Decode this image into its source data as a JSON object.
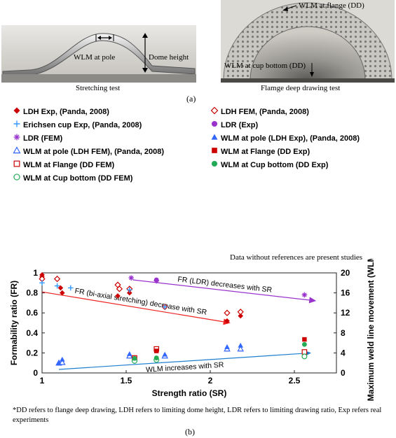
{
  "photos": {
    "left": {
      "caption": "Stretching test",
      "labels": {
        "wlm_pole": "WLM at pole",
        "dome_height": "Dome height"
      }
    },
    "right": {
      "caption": "Flamge deep drawing test",
      "labels": {
        "wlm_flange": "WLM at flange (DD)",
        "wlm_cup": "WLM at cup bottom (DD)"
      }
    },
    "panel_label": "(a)"
  },
  "legend": {
    "left": [
      {
        "marker": "diamond-filled",
        "color": "#cc0000",
        "label": "LDH Exp, (Panda, 2008)"
      },
      {
        "marker": "plus",
        "color": "#3399ff",
        "label": "Erichsen cup Exp, (Panda, 2008)"
      },
      {
        "marker": "star",
        "color": "#9933cc",
        "label": "LDR (FEM)"
      },
      {
        "marker": "triangle-open",
        "color": "#3366ff",
        "label": "WLM at pole (LDH FEM), (Panda, 2008)"
      },
      {
        "marker": "square-open",
        "color": "#cc0000",
        "label": "WLM at Flange (DD FEM)"
      },
      {
        "marker": "circle-open",
        "color": "#22aa55",
        "label": "WLM  at Cup bottom (DD FEM)"
      }
    ],
    "right": [
      {
        "marker": "diamond-open",
        "color": "#cc0000",
        "label": "LDH FEM, (Panda, 2008)"
      },
      {
        "marker": "circle-filled",
        "color": "#9933cc",
        "label": "LDR (Exp)"
      },
      {
        "marker": "triangle-filled",
        "color": "#3366ff",
        "label": "WLM at pole (LDH Exp), (Panda, 2008)"
      },
      {
        "marker": "square-filled",
        "color": "#cc0000",
        "label": "WLM at Flange (DD Exp)"
      },
      {
        "marker": "circle-filled",
        "color": "#22aa55",
        "label": "WLM  at Cup bottom (DD Exp)"
      }
    ],
    "note": "Data without references are present studies"
  },
  "chart_data": {
    "type": "scatter",
    "xlabel": "Strength ratio (SR)",
    "ylabel": "Formability ratio (FR)",
    "y2label": "Maximum weld line movement (WLM) in mm",
    "xlim": [
      1,
      2.75
    ],
    "ylim": [
      0,
      1
    ],
    "y2lim": [
      0,
      20
    ],
    "xticks": [
      "1",
      "1.5",
      "2",
      "2.5"
    ],
    "yticks": [
      "0",
      "0.2",
      "0.4",
      "0.6",
      "0.8",
      "1"
    ],
    "y2ticks": [
      "0",
      "4",
      "8",
      "12",
      "16",
      "20"
    ],
    "grid": false,
    "series": [
      {
        "name": "LDH Exp, (Panda, 2008)",
        "marker": "diamond-filled",
        "color": "#cc0000",
        "axis": "left",
        "points": [
          [
            1.0,
            0.98
          ],
          [
            1.0,
            0.96
          ],
          [
            1.11,
            0.85
          ],
          [
            1.12,
            0.8
          ],
          [
            1.45,
            0.77
          ],
          [
            1.52,
            0.8
          ],
          [
            2.1,
            0.52
          ],
          [
            2.18,
            0.57
          ]
        ]
      },
      {
        "name": "LDH FEM, (Panda, 2008)",
        "marker": "diamond-open",
        "color": "#cc0000",
        "axis": "left",
        "points": [
          [
            1.0,
            0.94
          ],
          [
            1.09,
            0.94
          ],
          [
            1.45,
            0.88
          ],
          [
            1.46,
            0.84
          ],
          [
            1.52,
            0.84
          ],
          [
            1.73,
            0.66
          ],
          [
            2.1,
            0.6
          ],
          [
            2.18,
            0.61
          ]
        ]
      },
      {
        "name": "Erichsen cup Exp, (Panda, 2008)",
        "marker": "plus",
        "color": "#3399ff",
        "axis": "left",
        "points": [
          [
            1.0,
            0.9
          ],
          [
            1.09,
            0.87
          ],
          [
            1.17,
            0.85
          ],
          [
            1.52,
            0.83
          ],
          [
            1.73,
            0.66
          ]
        ]
      },
      {
        "name": "LDR (FEM)",
        "marker": "star",
        "color": "#9933cc",
        "axis": "left",
        "points": [
          [
            1.53,
            0.95
          ],
          [
            1.68,
            0.92
          ],
          [
            2.56,
            0.78
          ]
        ]
      },
      {
        "name": "LDR (Exp)",
        "marker": "circle-filled",
        "color": "#9933cc",
        "axis": "left",
        "points": [
          [
            1.68,
            0.93
          ]
        ]
      },
      {
        "name": "WLM at pole (LDH FEM), (Panda, 2008)",
        "marker": "triangle-open",
        "color": "#3366ff",
        "axis": "right",
        "points": [
          [
            1.1,
            2.0
          ],
          [
            1.12,
            2.1
          ],
          [
            1.52,
            3.4
          ],
          [
            1.73,
            3.4
          ],
          [
            2.1,
            4.8
          ],
          [
            2.18,
            4.8
          ]
        ]
      },
      {
        "name": "WLM at pole (LDH Exp), (Panda, 2008)",
        "marker": "triangle-filled",
        "color": "#3366ff",
        "axis": "right",
        "points": [
          [
            1.1,
            1.9
          ],
          [
            1.12,
            2.7
          ],
          [
            1.52,
            3.8
          ],
          [
            1.73,
            3.7
          ],
          [
            2.1,
            5.2
          ],
          [
            2.18,
            5.5
          ]
        ]
      },
      {
        "name": "WLM at Flange (DD FEM)",
        "marker": "square-open",
        "color": "#cc0000",
        "axis": "right",
        "points": [
          [
            1.55,
            3.0
          ],
          [
            1.68,
            4.8
          ],
          [
            2.56,
            4.2
          ]
        ]
      },
      {
        "name": "WLM at Flange (DD Exp)",
        "marker": "square-filled",
        "color": "#cc0000",
        "axis": "right",
        "points": [
          [
            1.55,
            2.8
          ],
          [
            1.68,
            4.4
          ],
          [
            2.56,
            6.7
          ]
        ]
      },
      {
        "name": "WLM  at Cup bottom (DD FEM)",
        "marker": "circle-open",
        "color": "#22aa55",
        "axis": "right",
        "points": [
          [
            1.55,
            2.4
          ],
          [
            1.68,
            2.6
          ],
          [
            2.56,
            3.3
          ]
        ]
      },
      {
        "name": "WLM  at Cup bottom (DD Exp)",
        "marker": "circle-filled",
        "color": "#22aa55",
        "axis": "right",
        "points": [
          [
            1.55,
            2.9
          ],
          [
            1.68,
            3.0
          ],
          [
            2.56,
            5.7
          ]
        ]
      }
    ],
    "annotations": [
      {
        "text": "FR (LDR) decreases with SR",
        "color": "#9933cc",
        "axis": "left",
        "from": [
          1.54,
          0.93
        ],
        "to": [
          2.63,
          0.72
        ]
      },
      {
        "text": "FR (bi-axial stretching) decrease with SR",
        "color": "#ee2222",
        "axis": "left",
        "from": [
          1.0,
          0.81
        ],
        "to": [
          2.12,
          0.5
        ]
      },
      {
        "text": "WLM increases with SR",
        "color": "#1f7fd0",
        "axis": "right",
        "from": [
          1.1,
          0.7
        ],
        "to": [
          2.6,
          4.0
        ]
      }
    ]
  },
  "footnote": "*DD refers to flange deep drawing, LDH refers to limiting dome height, LDR refers to limiting drawing ratio, Exp refers real experiments",
  "panel_label_b": "(b)"
}
